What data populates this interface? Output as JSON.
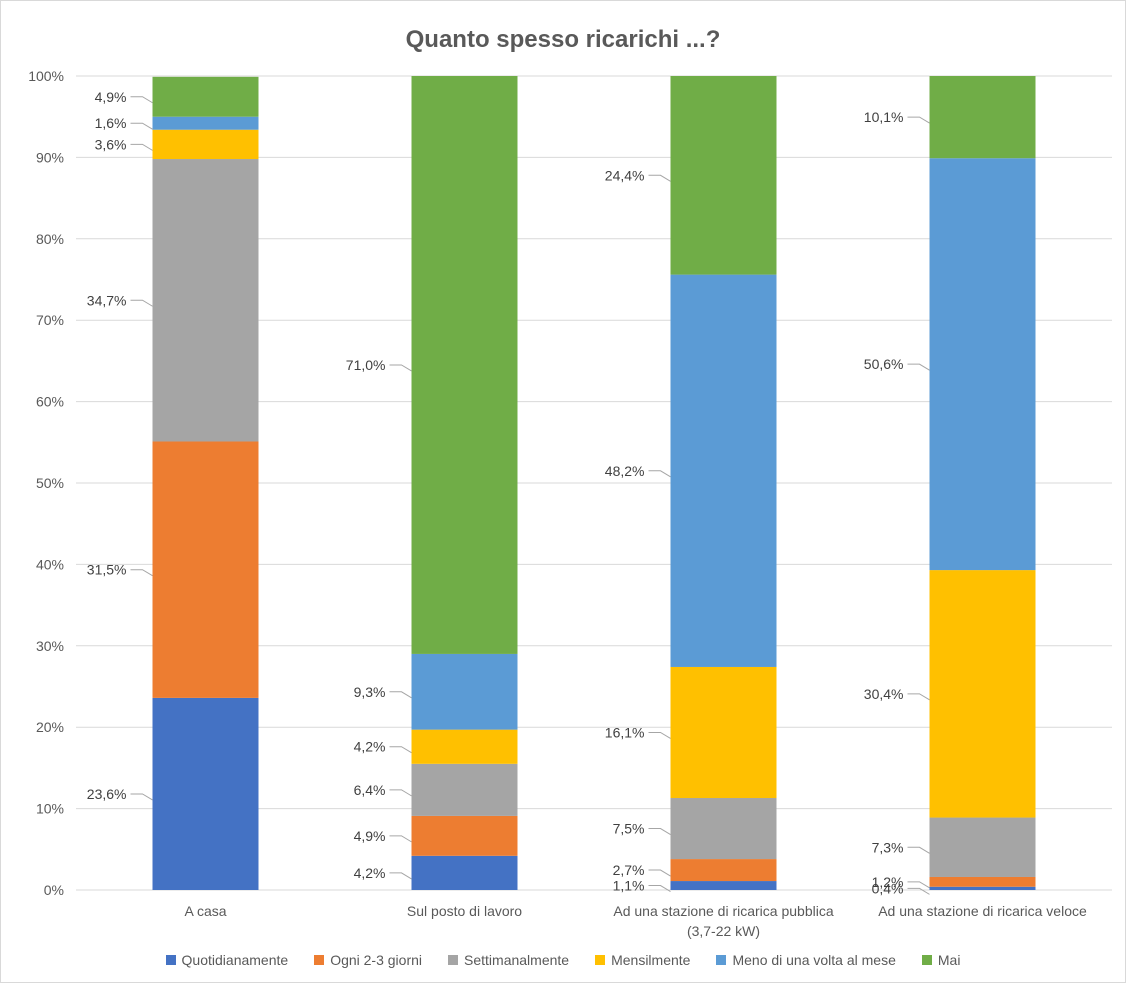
{
  "chart_data": {
    "type": "bar",
    "stacked": true,
    "percent": true,
    "title": "Quanto spesso ricarichi ...?",
    "xlabel": "",
    "ylabel": "",
    "ylim": [
      0,
      100
    ],
    "yticks": [
      "0%",
      "10%",
      "20%",
      "30%",
      "40%",
      "50%",
      "60%",
      "70%",
      "80%",
      "90%",
      "100%"
    ],
    "grid": true,
    "legend_position": "bottom",
    "categories": [
      [
        "A casa"
      ],
      [
        "Sul posto di lavoro"
      ],
      [
        "Ad una stazione di ricarica pubblica",
        "(3,7-22 kW)"
      ],
      [
        "Ad una stazione di ricarica veloce"
      ]
    ],
    "series": [
      {
        "name": "Quotidianamente",
        "color": "#4472c4",
        "values": [
          23.6,
          4.2,
          1.1,
          0.4
        ],
        "labels": [
          "23,6%",
          "4,2%",
          "1,1%",
          "0,4%"
        ]
      },
      {
        "name": "Ogni 2-3 giorni",
        "color": "#ed7d31",
        "values": [
          31.5,
          4.9,
          2.7,
          1.2
        ],
        "labels": [
          "31,5%",
          "4,9%",
          "2,7%",
          "1,2%"
        ]
      },
      {
        "name": "Settimanalmente",
        "color": "#a5a5a5",
        "values": [
          34.7,
          6.4,
          7.5,
          7.3
        ],
        "labels": [
          "34,7%",
          "6,4%",
          "7,5%",
          "7,3%"
        ]
      },
      {
        "name": "Mensilmente",
        "color": "#ffc000",
        "values": [
          3.6,
          4.2,
          16.1,
          30.4
        ],
        "labels": [
          "3,6%",
          "4,2%",
          "16,1%",
          "30,4%"
        ]
      },
      {
        "name": "Meno di una volta al mese",
        "color": "#5b9bd5",
        "values": [
          1.6,
          9.3,
          48.2,
          50.6
        ],
        "labels": [
          "1,6%",
          "9,3%",
          "48,2%",
          "50,6%"
        ]
      },
      {
        "name": "Mai",
        "color": "#70ad47",
        "values": [
          4.9,
          71.0,
          24.4,
          10.1
        ],
        "labels": [
          "4,9%",
          "71,0%",
          "24,4%",
          "10,1%"
        ]
      }
    ]
  }
}
